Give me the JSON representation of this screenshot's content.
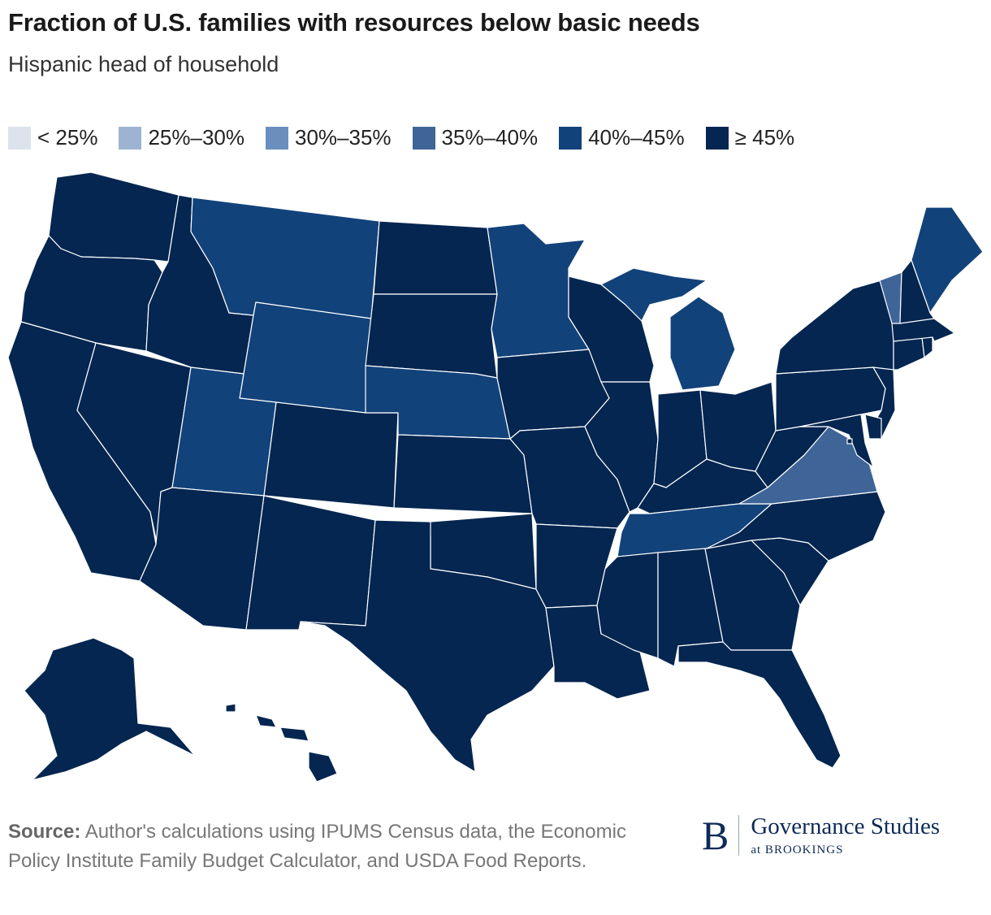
{
  "title": "Fraction of U.S. families with resources below basic needs",
  "subtitle": "Hispanic head of household",
  "legend": [
    {
      "label": "< 25%",
      "color": "#dce3ec"
    },
    {
      "label": "25%–30%",
      "color": "#9db3d2"
    },
    {
      "label": "30%–35%",
      "color": "#6a8fbe"
    },
    {
      "label": "35%–40%",
      "color": "#3e6498"
    },
    {
      "label": "40%–45%",
      "color": "#12427a"
    },
    {
      "label": "≥ 45%",
      "color": "#042650"
    }
  ],
  "source": {
    "label": "Source:",
    "text": "Author's calculations using IPUMS Census data, the Economic Policy Institute Family Budget Calculator, and USDA Food Reports."
  },
  "brand": {
    "letter": "B",
    "name": "Governance Studies",
    "sub": "at BROOKINGS"
  },
  "states": {
    "WA": 5,
    "OR": 5,
    "CA": 5,
    "NV": 5,
    "ID": 5,
    "MT": 4,
    "WY": 4,
    "UT": 4,
    "AZ": 5,
    "CO": 5,
    "NM": 5,
    "ND": 5,
    "SD": 5,
    "NE": 4,
    "KS": 5,
    "OK": 5,
    "TX": 5,
    "MN": 4,
    "IA": 5,
    "MO": 5,
    "AR": 5,
    "LA": 5,
    "WI": 5,
    "IL": 5,
    "MI": 4,
    "IN": 5,
    "OH": 5,
    "KY": 5,
    "TN": 4,
    "MS": 5,
    "AL": 5,
    "GA": 5,
    "FL": 5,
    "SC": 5,
    "NC": 5,
    "VA": 3,
    "WV": 5,
    "PA": 5,
    "NY": 5,
    "VT": 3,
    "NH": 5,
    "ME": 4,
    "MA": 5,
    "CT": 5,
    "RI": 5,
    "NJ": 5,
    "DE": 5,
    "MD": 5,
    "DC": 5,
    "AK": 5,
    "HI": 5
  }
}
